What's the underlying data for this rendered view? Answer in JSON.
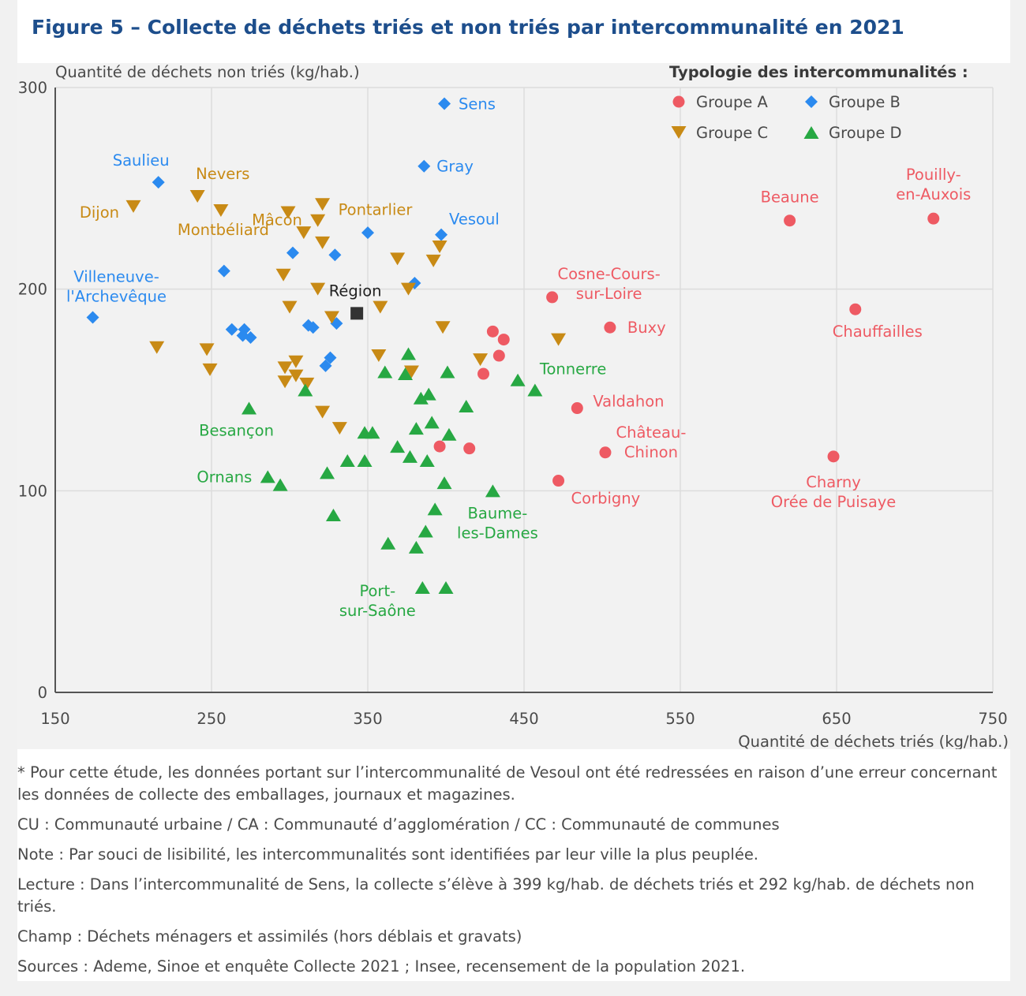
{
  "title": "Figure 5 – Collecte de déchets triés et non triés par intercommunalité en 2021",
  "chart_data": {
    "type": "scatter",
    "xlabel": "Quantité de déchets triés (kg/hab.)",
    "ylabel": "Quantité de déchets non triés (kg/hab.)",
    "xlim": [
      150,
      750
    ],
    "ylim": [
      0,
      300
    ],
    "xticks": [
      150,
      250,
      350,
      450,
      550,
      650,
      750
    ],
    "yticks": [
      0,
      100,
      200,
      300
    ],
    "grid": true,
    "legend_title": "Typologie des intercommunalités :",
    "legend_position": "top-right",
    "series": [
      {
        "name": "Groupe A",
        "marker": "circle",
        "color": "#ee5a63",
        "points": [
          {
            "x": 620,
            "y": 234,
            "label": "Beaune"
          },
          {
            "x": 712,
            "y": 235,
            "label": "Pouilly-en-Auxois"
          },
          {
            "x": 468,
            "y": 196,
            "label": "Cosne-Cours-sur-Loire"
          },
          {
            "x": 505,
            "y": 181,
            "label": "Buxy"
          },
          {
            "x": 662,
            "y": 190,
            "label": "Chauffailles"
          },
          {
            "x": 484,
            "y": 141,
            "label": "Valdahon"
          },
          {
            "x": 502,
            "y": 119,
            "label": "Château-Chinon"
          },
          {
            "x": 472,
            "y": 105,
            "label": "Corbigny"
          },
          {
            "x": 648,
            "y": 117,
            "label": "Charny Orée de Puisaye"
          },
          {
            "x": 430,
            "y": 179,
            "label": ""
          },
          {
            "x": 437,
            "y": 175,
            "label": ""
          },
          {
            "x": 434,
            "y": 167,
            "label": ""
          },
          {
            "x": 424,
            "y": 158,
            "label": ""
          },
          {
            "x": 396,
            "y": 122,
            "label": ""
          },
          {
            "x": 415,
            "y": 121,
            "label": ""
          }
        ]
      },
      {
        "name": "Groupe B",
        "marker": "diamond",
        "color": "#2b8aef",
        "points": [
          {
            "x": 399,
            "y": 292,
            "label": "Sens"
          },
          {
            "x": 386,
            "y": 261,
            "label": "Gray"
          },
          {
            "x": 216,
            "y": 253,
            "label": "Saulieu"
          },
          {
            "x": 397,
            "y": 227,
            "label": "Vesoul"
          },
          {
            "x": 174,
            "y": 186,
            "label": "Villeneuve-l'Archevêque"
          },
          {
            "x": 350,
            "y": 228,
            "label": ""
          },
          {
            "x": 302,
            "y": 218,
            "label": ""
          },
          {
            "x": 329,
            "y": 217,
            "label": ""
          },
          {
            "x": 258,
            "y": 209,
            "label": ""
          },
          {
            "x": 380,
            "y": 203,
            "label": ""
          },
          {
            "x": 263,
            "y": 180,
            "label": ""
          },
          {
            "x": 271,
            "y": 180,
            "label": ""
          },
          {
            "x": 270,
            "y": 177,
            "label": ""
          },
          {
            "x": 275,
            "y": 176,
            "label": ""
          },
          {
            "x": 312,
            "y": 182,
            "label": ""
          },
          {
            "x": 315,
            "y": 181,
            "label": ""
          },
          {
            "x": 330,
            "y": 183,
            "label": ""
          },
          {
            "x": 326,
            "y": 166,
            "label": ""
          },
          {
            "x": 323,
            "y": 162,
            "label": ""
          }
        ]
      },
      {
        "name": "Groupe C",
        "marker": "triangle-down",
        "color": "#c88a15",
        "points": [
          {
            "x": 200,
            "y": 241,
            "label": "Dijon"
          },
          {
            "x": 241,
            "y": 246,
            "label": "Nevers"
          },
          {
            "x": 256,
            "y": 239,
            "label": "Montbéliard"
          },
          {
            "x": 299,
            "y": 238,
            "label": "Mâcon"
          },
          {
            "x": 321,
            "y": 242,
            "label": "Pontarlier"
          },
          {
            "x": 318,
            "y": 234,
            "label": ""
          },
          {
            "x": 309,
            "y": 228,
            "label": ""
          },
          {
            "x": 321,
            "y": 223,
            "label": ""
          },
          {
            "x": 369,
            "y": 215,
            "label": ""
          },
          {
            "x": 396,
            "y": 221,
            "label": ""
          },
          {
            "x": 392,
            "y": 214,
            "label": ""
          },
          {
            "x": 296,
            "y": 207,
            "label": ""
          },
          {
            "x": 318,
            "y": 200,
            "label": ""
          },
          {
            "x": 376,
            "y": 200,
            "label": ""
          },
          {
            "x": 300,
            "y": 191,
            "label": ""
          },
          {
            "x": 358,
            "y": 191,
            "label": ""
          },
          {
            "x": 327,
            "y": 186,
            "label": ""
          },
          {
            "x": 398,
            "y": 181,
            "label": ""
          },
          {
            "x": 472,
            "y": 175,
            "label": ""
          },
          {
            "x": 215,
            "y": 171,
            "label": ""
          },
          {
            "x": 247,
            "y": 170,
            "label": ""
          },
          {
            "x": 357,
            "y": 167,
            "label": ""
          },
          {
            "x": 422,
            "y": 165,
            "label": ""
          },
          {
            "x": 304,
            "y": 164,
            "label": ""
          },
          {
            "x": 297,
            "y": 161,
            "label": ""
          },
          {
            "x": 249,
            "y": 160,
            "label": ""
          },
          {
            "x": 378,
            "y": 159,
            "label": ""
          },
          {
            "x": 297,
            "y": 154,
            "label": ""
          },
          {
            "x": 304,
            "y": 157,
            "label": ""
          },
          {
            "x": 311,
            "y": 153,
            "label": ""
          },
          {
            "x": 321,
            "y": 139,
            "label": ""
          },
          {
            "x": 332,
            "y": 131,
            "label": ""
          }
        ]
      },
      {
        "name": "Groupe D",
        "marker": "triangle-up",
        "color": "#27a843",
        "points": [
          {
            "x": 457,
            "y": 150,
            "label": "Tonnerre"
          },
          {
            "x": 274,
            "y": 141,
            "label": "Besançon"
          },
          {
            "x": 286,
            "y": 107,
            "label": "Ornans"
          },
          {
            "x": 430,
            "y": 100,
            "label": "Baume-les-Dames"
          },
          {
            "x": 385,
            "y": 52,
            "label": "Port-sur-Saône"
          },
          {
            "x": 376,
            "y": 168,
            "label": ""
          },
          {
            "x": 361,
            "y": 159,
            "label": ""
          },
          {
            "x": 374,
            "y": 158,
            "label": ""
          },
          {
            "x": 401,
            "y": 159,
            "label": ""
          },
          {
            "x": 446,
            "y": 155,
            "label": ""
          },
          {
            "x": 310,
            "y": 150,
            "label": ""
          },
          {
            "x": 389,
            "y": 148,
            "label": ""
          },
          {
            "x": 384,
            "y": 146,
            "label": ""
          },
          {
            "x": 413,
            "y": 142,
            "label": ""
          },
          {
            "x": 391,
            "y": 134,
            "label": ""
          },
          {
            "x": 381,
            "y": 131,
            "label": ""
          },
          {
            "x": 348,
            "y": 129,
            "label": ""
          },
          {
            "x": 353,
            "y": 129,
            "label": ""
          },
          {
            "x": 402,
            "y": 128,
            "label": ""
          },
          {
            "x": 369,
            "y": 122,
            "label": ""
          },
          {
            "x": 377,
            "y": 117,
            "label": ""
          },
          {
            "x": 388,
            "y": 115,
            "label": ""
          },
          {
            "x": 337,
            "y": 115,
            "label": ""
          },
          {
            "x": 348,
            "y": 115,
            "label": ""
          },
          {
            "x": 324,
            "y": 109,
            "label": ""
          },
          {
            "x": 294,
            "y": 103,
            "label": ""
          },
          {
            "x": 399,
            "y": 104,
            "label": ""
          },
          {
            "x": 393,
            "y": 91,
            "label": ""
          },
          {
            "x": 328,
            "y": 88,
            "label": ""
          },
          {
            "x": 387,
            "y": 80,
            "label": ""
          },
          {
            "x": 363,
            "y": 74,
            "label": ""
          },
          {
            "x": 381,
            "y": 72,
            "label": ""
          },
          {
            "x": 400,
            "y": 52,
            "label": ""
          }
        ]
      },
      {
        "name": "",
        "marker": "square",
        "color": "#333333",
        "points": [
          {
            "x": 343,
            "y": 188,
            "label": "Région"
          }
        ]
      }
    ]
  },
  "notes": [
    "* Pour cette étude, les données portant sur l’intercommunalité de Vesoul ont été redressées en raison d’une erreur concernant les données de collecte des emballages, journaux et magazines.",
    "CU : Communauté urbaine / CA : Communauté d’agglomération / CC : Communauté de communes",
    "Note : Par souci de lisibilité, les intercommunalités sont identifiées par leur ville la plus peuplée.",
    "Lecture : Dans l’intercommunalité de Sens, la collecte s’élève à 399 kg/hab. de déchets triés et 292 kg/hab. de déchets non triés.",
    "Champ : Déchets ménagers et assimilés (hors déblais et gravats)",
    "Sources : Ademe, Sinoe et enquête Collecte 2021 ; Insee, recensement de la population 2021."
  ]
}
